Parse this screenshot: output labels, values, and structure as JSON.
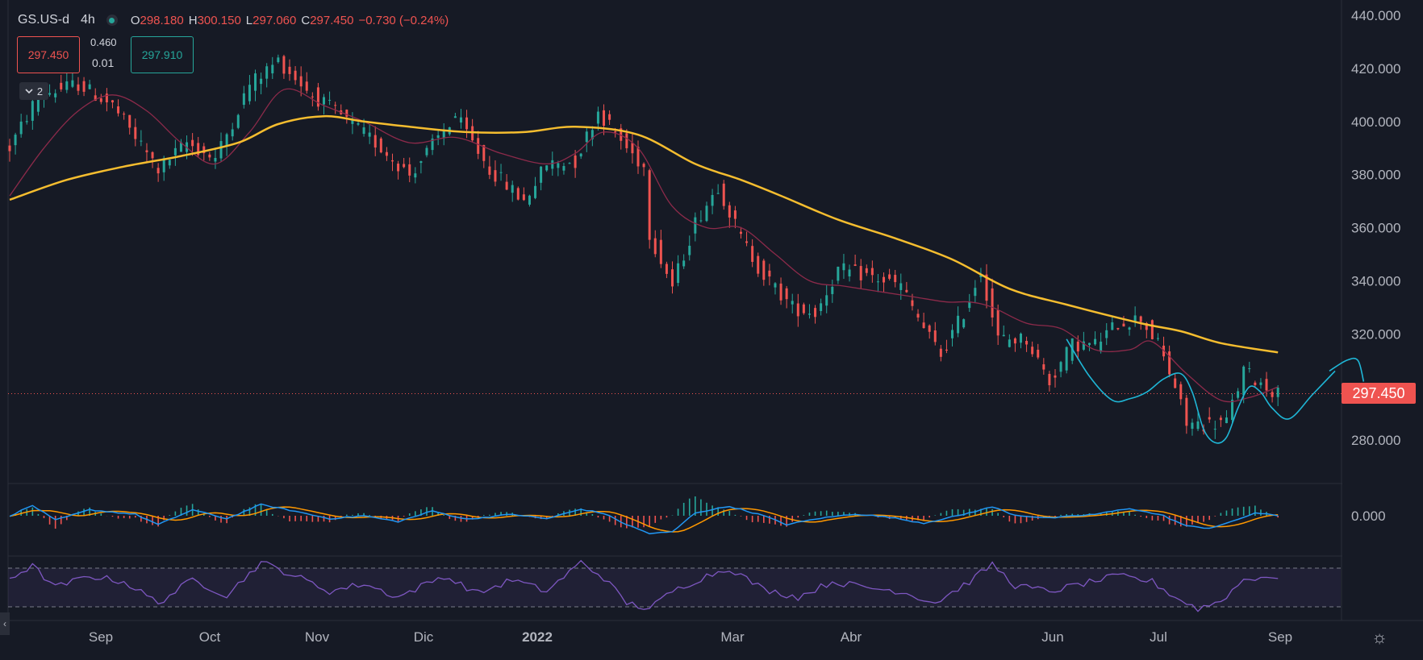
{
  "header": {
    "symbol": "GS.US-d",
    "timeframe": "4h",
    "open_label": "O",
    "open": "298.180",
    "high_label": "H",
    "high": "300.150",
    "low_label": "L",
    "low": "297.060",
    "close_label": "C",
    "close": "297.450",
    "change": "−0.730 (−0.24%)"
  },
  "trade": {
    "sell_price": "297.450",
    "spread_top": "0.460",
    "spread_bottom": "0.01",
    "buy_price": "297.910"
  },
  "indicators_toggle": {
    "count": "2"
  },
  "colors": {
    "background": "#161a25",
    "up": "#26a69a",
    "down": "#ef5350",
    "ma_slow": "#f5bd2f",
    "ma_fast": "#8c2a4a",
    "projection": "#1fb6d6",
    "macd_line": "#2196f3",
    "signal_line": "#ff9800",
    "rsi_line": "#7e57c2"
  },
  "icons": {
    "status": "market-open-dot",
    "collapse": "chevron-down-icon",
    "settings": "gear-icon",
    "scroll_left": "chevron-left-icon"
  },
  "chart_data": [
    {
      "type": "candlestick",
      "pane": "price",
      "price_axis": [
        "440.000",
        "420.000",
        "400.000",
        "380.000",
        "360.000",
        "340.000",
        "320.000",
        "280.000"
      ],
      "ylim": [
        268,
        442
      ],
      "last_price": "297.450",
      "time_axis": [
        "Sep",
        "Oct",
        "Nov",
        "Dic",
        "2022",
        "Mar",
        "Abr",
        "Jun",
        "Jul",
        "Sep"
      ],
      "price_anchors": [
        [
          0,
          390
        ],
        [
          5,
          410
        ],
        [
          12,
          414
        ],
        [
          18,
          406
        ],
        [
          26,
          382
        ],
        [
          31,
          392
        ],
        [
          36,
          386
        ],
        [
          42,
          414
        ],
        [
          47,
          423
        ],
        [
          53,
          410
        ],
        [
          58,
          402
        ],
        [
          64,
          392
        ],
        [
          70,
          380
        ],
        [
          78,
          402
        ],
        [
          84,
          382
        ],
        [
          90,
          370
        ],
        [
          94,
          384
        ],
        [
          99,
          385
        ],
        [
          103,
          404
        ],
        [
          108,
          390
        ],
        [
          111,
          383
        ],
        [
          112,
          358
        ],
        [
          116,
          338
        ],
        [
          120,
          362
        ],
        [
          124,
          376
        ],
        [
          128,
          356
        ],
        [
          132,
          342
        ],
        [
          137,
          330
        ],
        [
          141,
          328
        ],
        [
          145,
          344
        ],
        [
          150,
          342
        ],
        [
          156,
          338
        ],
        [
          160,
          322
        ],
        [
          163,
          312
        ],
        [
          167,
          328
        ],
        [
          170,
          344
        ],
        [
          173,
          318
        ],
        [
          178,
          318
        ],
        [
          182,
          302
        ],
        [
          186,
          316
        ],
        [
          190,
          316
        ],
        [
          194,
          324
        ],
        [
          198,
          326
        ],
        [
          201,
          316
        ],
        [
          204,
          300
        ],
        [
          206,
          286
        ],
        [
          210,
          286
        ],
        [
          213,
          287
        ],
        [
          216,
          306
        ],
        [
          220,
          300
        ],
        [
          222,
          297.45
        ]
      ],
      "moving_average_slow": [
        [
          0,
          370.5
        ],
        [
          10,
          378
        ],
        [
          20,
          383
        ],
        [
          30,
          387
        ],
        [
          40,
          392
        ],
        [
          47,
          399
        ],
        [
          55,
          402
        ],
        [
          62,
          400
        ],
        [
          70,
          398
        ],
        [
          80,
          396
        ],
        [
          90,
          396
        ],
        [
          99,
          398
        ],
        [
          110,
          395
        ],
        [
          120,
          384
        ],
        [
          128,
          378
        ],
        [
          135,
          372
        ],
        [
          145,
          363
        ],
        [
          155,
          356
        ],
        [
          165,
          348
        ],
        [
          175,
          337
        ],
        [
          185,
          331
        ],
        [
          198,
          324
        ],
        [
          205,
          321
        ],
        [
          212,
          316.5
        ],
        [
          222,
          313
        ]
      ],
      "moving_average_fast": [
        [
          0,
          372
        ],
        [
          6,
          390
        ],
        [
          12,
          404
        ],
        [
          18,
          410
        ],
        [
          24,
          404
        ],
        [
          30,
          392
        ],
        [
          36,
          384
        ],
        [
          42,
          396
        ],
        [
          48,
          412
        ],
        [
          55,
          406
        ],
        [
          62,
          400
        ],
        [
          70,
          392
        ],
        [
          78,
          394
        ],
        [
          86,
          388
        ],
        [
          94,
          384
        ],
        [
          99,
          388
        ],
        [
          104,
          396
        ],
        [
          110,
          390
        ],
        [
          116,
          368
        ],
        [
          122,
          360
        ],
        [
          128,
          360
        ],
        [
          134,
          350
        ],
        [
          140,
          340
        ],
        [
          146,
          338
        ],
        [
          152,
          336
        ],
        [
          158,
          334
        ],
        [
          164,
          332
        ],
        [
          168,
          332
        ],
        [
          172,
          330
        ],
        [
          178,
          324
        ],
        [
          184,
          322
        ],
        [
          190,
          314
        ],
        [
          196,
          314
        ],
        [
          200,
          317
        ],
        [
          206,
          305
        ],
        [
          212,
          295
        ],
        [
          217,
          296
        ],
        [
          222,
          300
        ]
      ],
      "projection_path": [
        [
          185,
          318
        ],
        [
          189,
          304
        ],
        [
          193,
          295
        ],
        [
          196,
          295.5
        ],
        [
          199,
          298
        ],
        [
          202,
          303
        ],
        [
          205,
          305
        ],
        [
          207,
          298
        ],
        [
          209,
          284
        ],
        [
          211,
          279
        ],
        [
          213,
          281
        ],
        [
          215,
          292
        ],
        [
          217,
          300
        ],
        [
          219,
          298
        ],
        [
          221,
          292
        ],
        [
          224,
          288
        ],
        [
          228,
          297
        ],
        [
          232,
          306
        ]
      ],
      "projection_path_2": [
        [
          231,
          306
        ],
        [
          234,
          310
        ],
        [
          236,
          310
        ],
        [
          237,
          302
        ]
      ]
    },
    {
      "type": "line",
      "pane": "macd",
      "axis_label": "0.000",
      "ylim": [
        -8,
        6
      ],
      "macd_anchors": [
        [
          0,
          0
        ],
        [
          4,
          3.5
        ],
        [
          8,
          -1.5
        ],
        [
          14,
          2
        ],
        [
          22,
          0.5
        ],
        [
          26,
          -3
        ],
        [
          32,
          2
        ],
        [
          38,
          -1
        ],
        [
          44,
          3.8
        ],
        [
          50,
          1.5
        ],
        [
          56,
          -1
        ],
        [
          62,
          0
        ],
        [
          68,
          -2
        ],
        [
          74,
          1.6
        ],
        [
          80,
          -1.2
        ],
        [
          88,
          0.5
        ],
        [
          94,
          -1
        ],
        [
          100,
          2.2
        ],
        [
          104,
          0.8
        ],
        [
          108,
          -3
        ],
        [
          112,
          -6
        ],
        [
          116,
          -5.5
        ],
        [
          120,
          1
        ],
        [
          126,
          3.2
        ],
        [
          132,
          0
        ],
        [
          136,
          -3
        ],
        [
          142,
          -0.8
        ],
        [
          148,
          0.6
        ],
        [
          154,
          -0.5
        ],
        [
          160,
          -2.5
        ],
        [
          166,
          0
        ],
        [
          172,
          3
        ],
        [
          176,
          0.2
        ],
        [
          182,
          -0.8
        ],
        [
          190,
          0.5
        ],
        [
          196,
          2.5
        ],
        [
          202,
          0
        ],
        [
          206,
          -3.5
        ],
        [
          210,
          -4.2
        ],
        [
          214,
          -2
        ],
        [
          218,
          1
        ],
        [
          222,
          0
        ]
      ],
      "signal_lag": 3
    },
    {
      "type": "line",
      "pane": "rsi",
      "bands": [
        70,
        30
      ],
      "ylim": [
        20,
        80
      ],
      "rsi_anchors": [
        [
          0,
          60
        ],
        [
          4,
          72
        ],
        [
          8,
          50
        ],
        [
          14,
          62
        ],
        [
          20,
          56
        ],
        [
          26,
          34
        ],
        [
          32,
          58
        ],
        [
          38,
          42
        ],
        [
          44,
          76
        ],
        [
          50,
          62
        ],
        [
          56,
          46
        ],
        [
          62,
          54
        ],
        [
          68,
          40
        ],
        [
          76,
          62
        ],
        [
          82,
          44
        ],
        [
          88,
          58
        ],
        [
          94,
          46
        ],
        [
          100,
          76
        ],
        [
          104,
          60
        ],
        [
          108,
          34
        ],
        [
          112,
          28
        ],
        [
          116,
          46
        ],
        [
          122,
          62
        ],
        [
          126,
          70
        ],
        [
          132,
          48
        ],
        [
          138,
          40
        ],
        [
          144,
          56
        ],
        [
          150,
          50
        ],
        [
          156,
          46
        ],
        [
          162,
          34
        ],
        [
          168,
          56
        ],
        [
          172,
          74
        ],
        [
          176,
          52
        ],
        [
          182,
          46
        ],
        [
          188,
          54
        ],
        [
          194,
          62
        ],
        [
          200,
          56
        ],
        [
          204,
          40
        ],
        [
          208,
          28
        ],
        [
          212,
          36
        ],
        [
          216,
          58
        ],
        [
          220,
          62
        ],
        [
          222,
          56
        ]
      ]
    }
  ]
}
